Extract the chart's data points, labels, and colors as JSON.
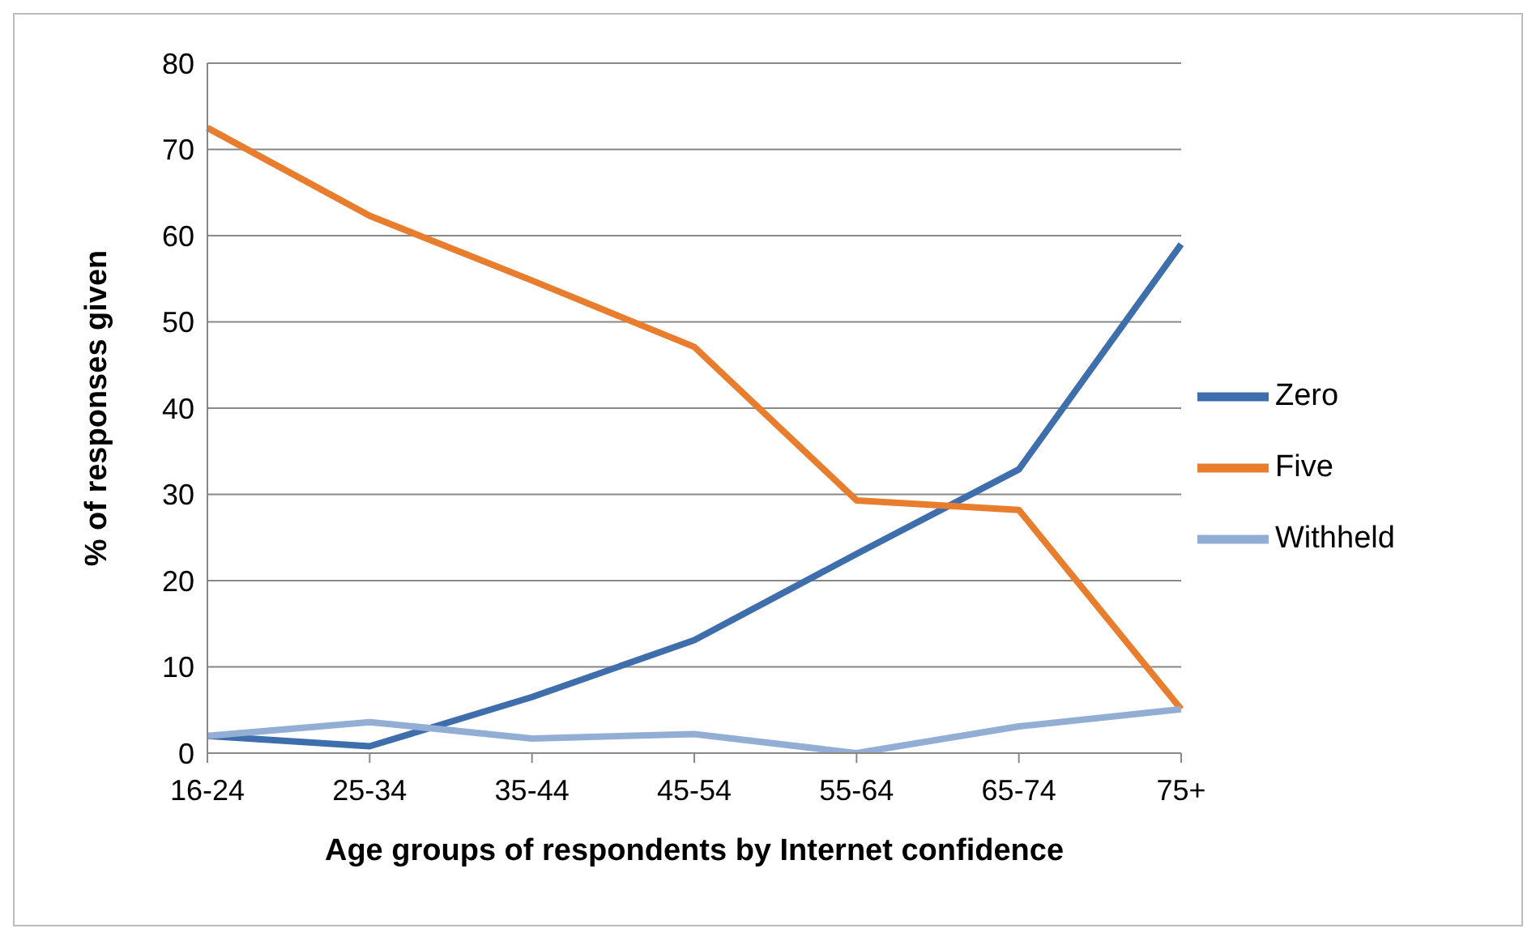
{
  "chart_data": {
    "type": "line",
    "xlabel": "Age groups of respondents by Internet confidence",
    "ylabel": "% of responses given",
    "categories": [
      "16-24",
      "25-34",
      "35-44",
      "45-54",
      "55-64",
      "65-74",
      "75+"
    ],
    "series": [
      {
        "name": "Zero",
        "color": "#3e6eab",
        "values": [
          2.0,
          0.8,
          6.5,
          13.1,
          23.1,
          32.9,
          59.0
        ]
      },
      {
        "name": "Five",
        "color": "#e87d2e",
        "values": [
          72.5,
          62.3,
          54.8,
          47.1,
          29.3,
          28.2,
          5.1
        ]
      },
      {
        "name": "Withheld",
        "color": "#93aed5",
        "values": [
          2.0,
          3.6,
          1.7,
          2.2,
          0,
          3.1,
          5.1
        ]
      }
    ],
    "ylim": [
      0,
      80
    ],
    "yticks": [
      0,
      10,
      20,
      30,
      40,
      50,
      60,
      70,
      80
    ],
    "grid": "y",
    "legend": "right",
    "marker": "none",
    "line_style": "solid"
  }
}
